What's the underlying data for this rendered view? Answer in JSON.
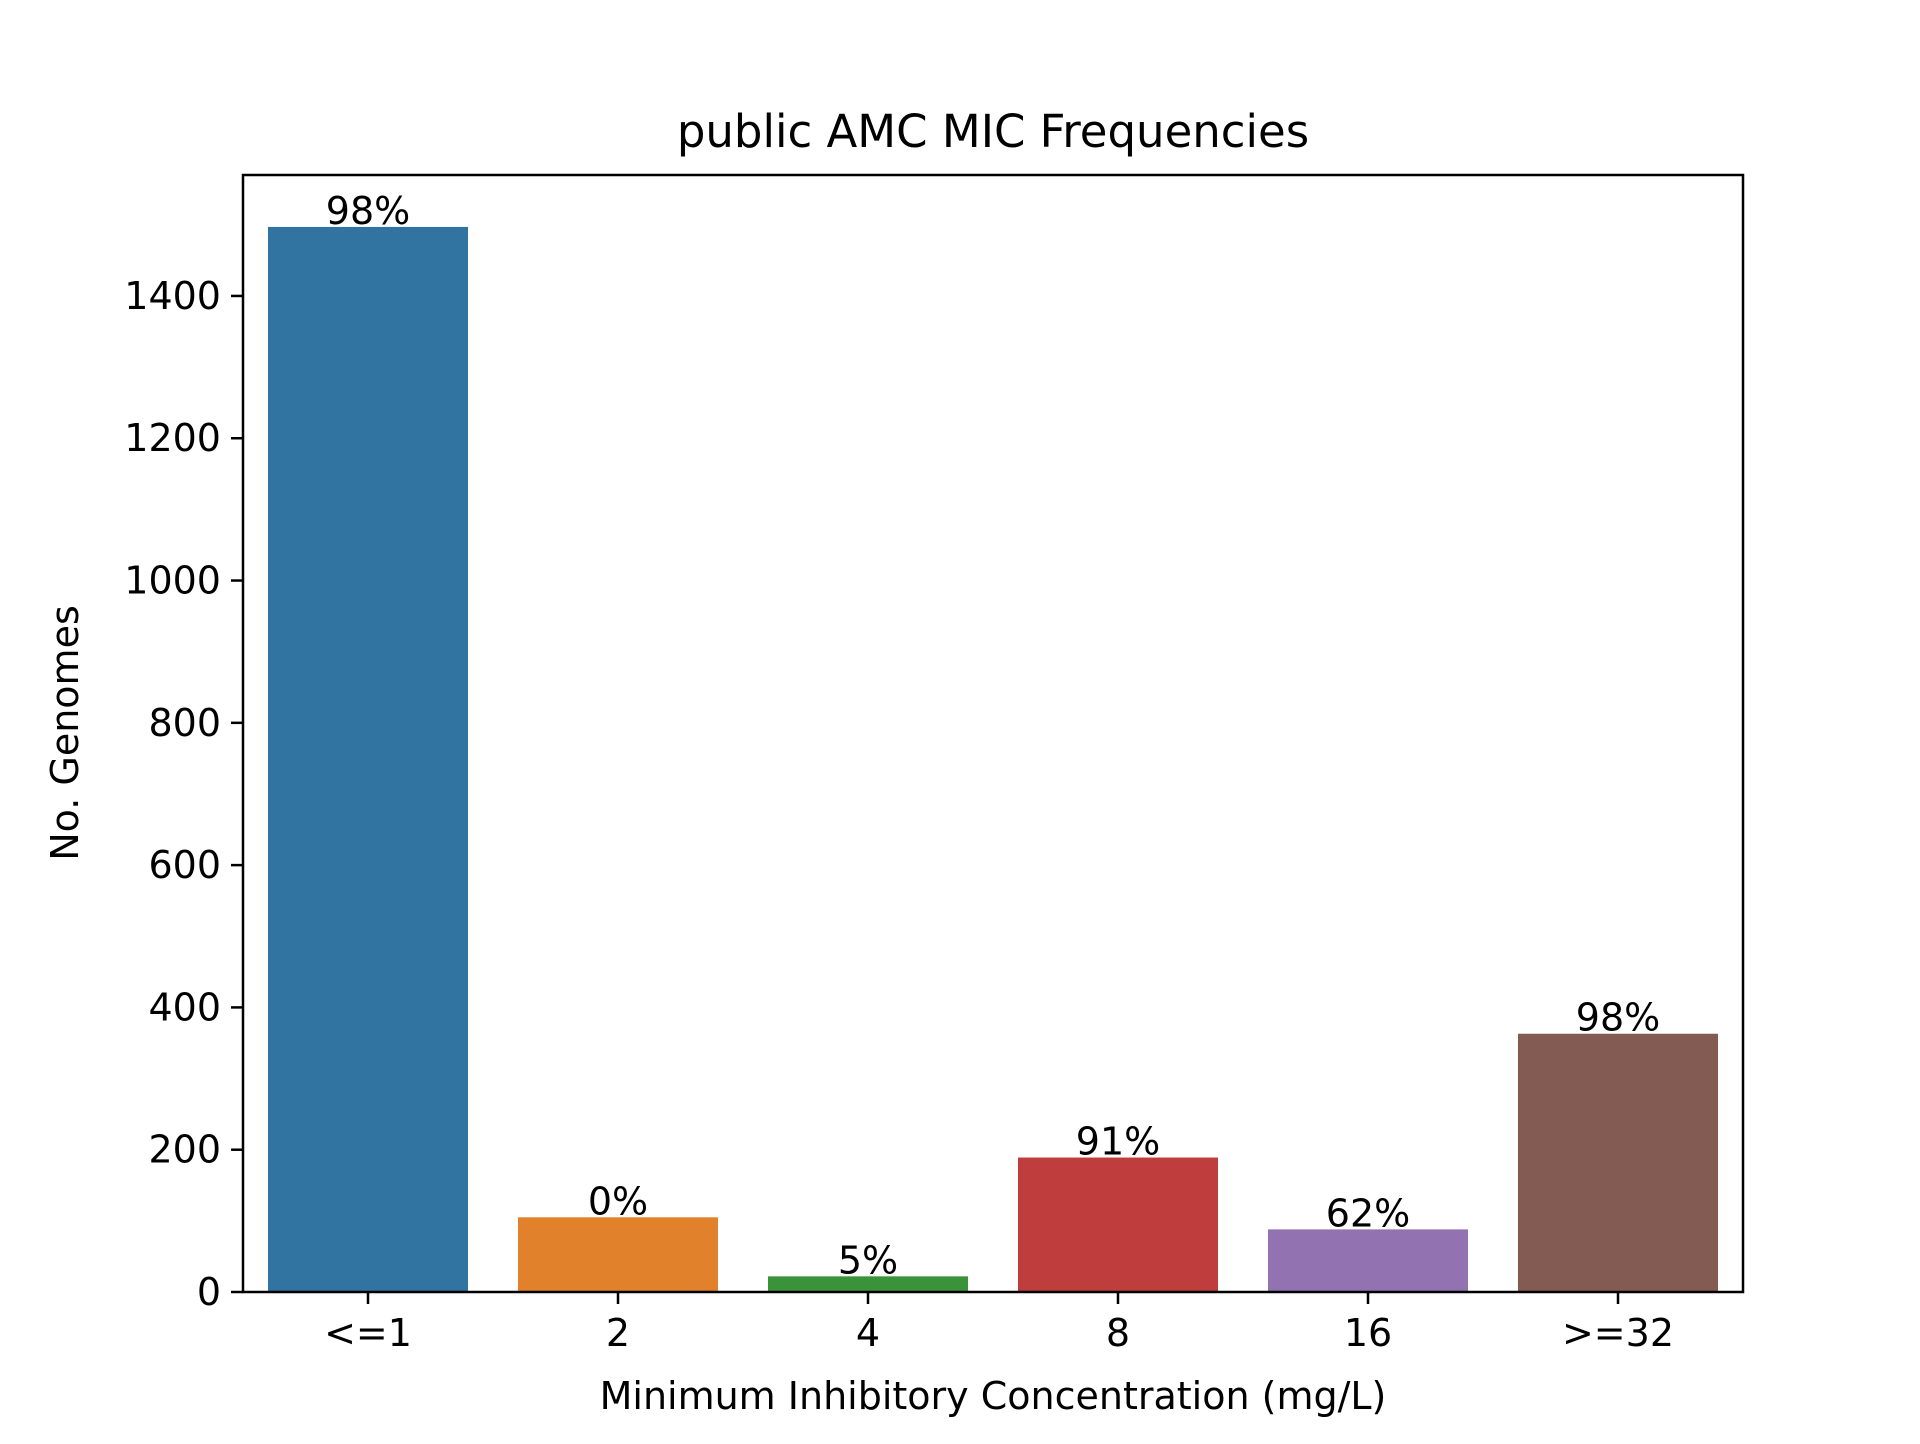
{
  "chart_data": {
    "type": "bar",
    "title": "public AMC MIC Frequencies",
    "xlabel": "Minimum Inhibitory Concentration (mg/L)",
    "ylabel": "No. Genomes",
    "categories": [
      "<=1",
      "2",
      "4",
      "8",
      "16",
      ">=32"
    ],
    "values": [
      1497,
      105,
      22,
      189,
      88,
      363
    ],
    "data_labels": [
      "98%",
      "0%",
      "5%",
      "91%",
      "62%",
      "98%"
    ],
    "colors": [
      "#3274a1",
      "#e1812c",
      "#3a923a",
      "#c03d3e",
      "#9372b2",
      "#845b53"
    ],
    "ylim": [
      0,
      1570
    ],
    "yticks": [
      0,
      200,
      400,
      600,
      800,
      1000,
      1200,
      1400
    ],
    "ytick_labels": [
      "0",
      "200",
      "400",
      "600",
      "800",
      "1000",
      "1200",
      "1400"
    ],
    "grid": false,
    "legend": "none"
  }
}
